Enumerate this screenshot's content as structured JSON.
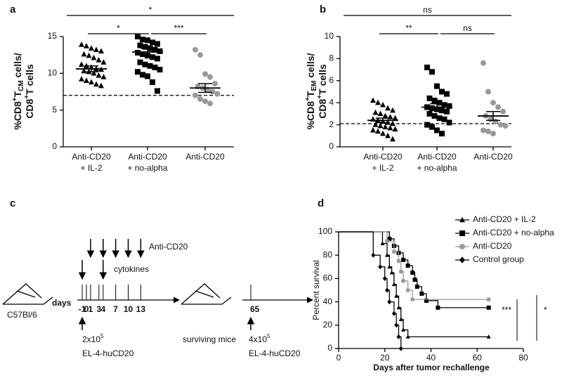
{
  "chart_data": [
    {
      "type": "dot",
      "panel_label": "a",
      "ylabel": [
        [
          {
            "text": "%CD8"
          },
          {
            "text": "+",
            "shift": "sup"
          },
          {
            "text": "T"
          },
          {
            "text": "CM",
            "shift": "sub"
          },
          {
            "text": " cells/"
          }
        ],
        [
          {
            "text": "CD8"
          },
          {
            "text": "+",
            "shift": "sup"
          },
          {
            "text": "T cells"
          }
        ]
      ],
      "categories": [
        [
          "Anti-CD20",
          "+ IL-2"
        ],
        [
          "Anti-CD20",
          "+ no-alpha"
        ],
        [
          "Anti-CD20"
        ]
      ],
      "markers": [
        "triangle",
        "square",
        "circle"
      ],
      "colors": [
        "#000000",
        "#000000",
        "#999999"
      ],
      "values": [
        [
          13.9,
          13.7,
          13.4,
          13.2,
          13.0,
          12.6,
          12.4,
          12.1,
          11.8,
          11.5,
          11.2,
          11.0,
          10.8,
          10.6,
          10.5,
          10.3,
          10.2,
          10.0,
          9.7,
          9.5,
          9.2,
          9.0,
          8.8,
          8.5,
          8.3
        ],
        [
          15.0,
          14.6,
          14.5,
          14.2,
          14.0,
          13.8,
          13.6,
          13.4,
          13.2,
          13.0,
          12.8,
          12.6,
          12.4,
          12.2,
          12.0,
          11.5,
          11.2,
          11.0,
          10.8,
          10.5,
          10.2,
          9.8,
          9.6,
          8.8,
          7.6
        ],
        [
          13.2,
          12.5,
          9.9,
          9.5,
          8.6,
          8.2,
          8.0,
          7.8,
          7.5,
          7.2,
          7.0,
          6.5,
          6.2,
          5.9
        ]
      ],
      "means": [
        10.6,
        12.9,
        8.0
      ],
      "sem": [
        0.4,
        0.5,
        0.6
      ],
      "reference_line": 7,
      "comparisons": [
        {
          "pair": [
            0,
            2
          ],
          "label": "*"
        },
        {
          "pair": [
            0,
            1
          ],
          "label": "*"
        },
        {
          "pair": [
            1,
            2
          ],
          "label": "***"
        }
      ],
      "ylim": [
        0,
        15
      ],
      "yticks": [
        0,
        5,
        10,
        15
      ]
    },
    {
      "type": "dot",
      "panel_label": "b",
      "ylabel": [
        [
          {
            "text": "%CD8"
          },
          {
            "text": "+",
            "shift": "sup"
          },
          {
            "text": "T"
          },
          {
            "text": "EM",
            "shift": "sub"
          },
          {
            "text": " cells/"
          }
        ],
        [
          {
            "text": "CD8"
          },
          {
            "text": "+",
            "shift": "sup"
          },
          {
            "text": "T cells"
          }
        ]
      ],
      "categories": [
        [
          "Anti-CD20",
          "+ IL-2"
        ],
        [
          "Anti-CD20",
          "+ no-alpha"
        ],
        [
          "Anti-CD20"
        ]
      ],
      "markers": [
        "triangle",
        "square",
        "circle"
      ],
      "colors": [
        "#000000",
        "#000000",
        "#999999"
      ],
      "values": [
        [
          4.2,
          4.0,
          3.8,
          3.5,
          3.3,
          3.1,
          3.0,
          2.8,
          2.7,
          2.6,
          2.5,
          2.4,
          2.3,
          2.2,
          2.1,
          2.0,
          1.9,
          1.8,
          1.7,
          1.6,
          1.5,
          1.4,
          1.2,
          1.0,
          0.7
        ],
        [
          7.2,
          6.8,
          5.5,
          5.0,
          4.8,
          4.4,
          4.2,
          4.0,
          3.8,
          3.7,
          3.6,
          3.5,
          3.4,
          3.3,
          3.2,
          3.0,
          2.8,
          2.6,
          2.5,
          2.2,
          2.0,
          1.8,
          1.5,
          1.2
        ],
        [
          7.6,
          5.0,
          4.0,
          3.6,
          3.2,
          2.8,
          2.5,
          2.3,
          2.0,
          1.9,
          1.5,
          1.4,
          1.2
        ]
      ],
      "means": [
        2.4,
        3.6,
        2.8
      ],
      "sem": [
        0.2,
        0.3,
        0.4
      ],
      "reference_line": 2.1,
      "comparisons": [
        {
          "pair": [
            0,
            2
          ],
          "label": "ns"
        },
        {
          "pair": [
            0,
            1
          ],
          "label": "**"
        },
        {
          "pair": [
            1,
            2
          ],
          "label": "ns"
        }
      ],
      "ylim": [
        0,
        10
      ],
      "yticks": [
        0,
        2,
        4,
        6,
        8,
        10
      ]
    },
    {
      "type": "step",
      "panel_label": "d",
      "xlabel": "Days after tumor rechallenge",
      "ylabel": "Percent survival",
      "series": [
        {
          "name": "Anti-CD20 + IL-2",
          "color": "#000000",
          "marker": "triangle",
          "x": [
            0,
            19,
            21,
            22,
            23,
            24,
            25,
            26,
            27,
            28,
            30,
            65
          ],
          "values": [
            100,
            90,
            80,
            70,
            65,
            55,
            45,
            35,
            25,
            16,
            10,
            10
          ]
        },
        {
          "name": "Anti-CD20 + no-alpha",
          "color": "#000000",
          "marker": "square",
          "x": [
            0,
            22,
            24,
            26,
            28,
            30,
            32,
            33,
            34,
            36,
            38,
            43,
            65
          ],
          "values": [
            100,
            94,
            88,
            82,
            76,
            71,
            65,
            59,
            53,
            47,
            41,
            35,
            35
          ]
        },
        {
          "name": "Anti-CD20",
          "color": "#999999",
          "marker": "circle",
          "x": [
            0,
            21,
            24,
            26,
            27,
            28,
            30,
            32,
            65
          ],
          "values": [
            100,
            92,
            83,
            75,
            66,
            58,
            50,
            42,
            42
          ]
        },
        {
          "name": "Control group",
          "color": "#000000",
          "marker": "diamond",
          "x": [
            0,
            15,
            18,
            20,
            21,
            22,
            24,
            25,
            26,
            27
          ],
          "values": [
            100,
            80,
            70,
            60,
            50,
            40,
            30,
            20,
            10,
            0
          ]
        }
      ],
      "annotations": [
        "***",
        "*"
      ],
      "xlim": [
        0,
        80
      ],
      "xticks": [
        0,
        20,
        40,
        60,
        80
      ],
      "ylim": [
        0,
        100
      ],
      "yticks": [
        0,
        20,
        40,
        60,
        80,
        100
      ]
    }
  ],
  "diagram": {
    "panel_label": "c",
    "strain": "C57Bl/6",
    "days_label": "days",
    "days": [
      -1,
      0,
      1,
      3,
      4,
      7,
      10,
      13
    ],
    "antibody": "Anti-CD20",
    "antibody_days": [
      1,
      4,
      7,
      10,
      13
    ],
    "cytokines": "cytokines",
    "cytokine_days": [
      -1,
      4
    ],
    "challenge": {
      "day": -1,
      "dose_base": "2x10",
      "dose_exp": "5",
      "cells": "EL-4-huCD20"
    },
    "surviving": "surviving mice",
    "rechallenge": {
      "day": 65,
      "dose_base": "4x10",
      "dose_exp": "5",
      "cells": "EL-4-huCD20"
    }
  }
}
